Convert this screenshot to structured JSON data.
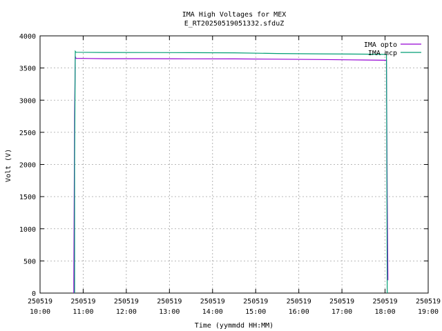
{
  "chart_data": {
    "type": "line",
    "title": "IMA High Voltages for MEX",
    "subtitle": "E_RT20250519051332.sfduZ",
    "xlabel": "Time (yymmdd HH:MM)",
    "ylabel": "Volt (V)",
    "xlim": [
      "2025-05-19 10:00",
      "2025-05-19 19:00"
    ],
    "ylim": [
      0,
      4000
    ],
    "grid": true,
    "legend_position": "top-right",
    "x_ticks": [
      {
        "date": "250519",
        "time": "10:00"
      },
      {
        "date": "250519",
        "time": "11:00"
      },
      {
        "date": "250519",
        "time": "12:00"
      },
      {
        "date": "250519",
        "time": "13:00"
      },
      {
        "date": "250519",
        "time": "14:00"
      },
      {
        "date": "250519",
        "time": "15:00"
      },
      {
        "date": "250519",
        "time": "16:00"
      },
      {
        "date": "250519",
        "time": "17:00"
      },
      {
        "date": "250519",
        "time": "18:00"
      },
      {
        "date": "250519",
        "time": "19:00"
      }
    ],
    "y_ticks": [
      0,
      500,
      1000,
      1500,
      2000,
      2500,
      3000,
      3500,
      4000
    ],
    "series": [
      {
        "name": "IMA opto",
        "color": "#9400d3",
        "points": [
          [
            "2025-05-19 10:47",
            0
          ],
          [
            "2025-05-19 10:47",
            190
          ],
          [
            "2025-05-19 10:48",
            2800
          ],
          [
            "2025-05-19 10:49",
            3680
          ],
          [
            "2025-05-19 10:50",
            3650
          ],
          [
            "2025-05-19 11:30",
            3645
          ],
          [
            "2025-05-19 12:30",
            3645
          ],
          [
            "2025-05-19 13:30",
            3643
          ],
          [
            "2025-05-19 14:30",
            3642
          ],
          [
            "2025-05-19 15:30",
            3638
          ],
          [
            "2025-05-19 16:30",
            3632
          ],
          [
            "2025-05-19 17:30",
            3625
          ],
          [
            "2025-05-19 18:02",
            3620
          ],
          [
            "2025-05-19 18:03",
            1500
          ],
          [
            "2025-05-19 18:04",
            200
          ]
        ]
      },
      {
        "name": "IMA mcp",
        "color": "#009e73",
        "points": [
          [
            "2025-05-19 10:48",
            0
          ],
          [
            "2025-05-19 10:48",
            2000
          ],
          [
            "2025-05-19 10:49",
            3760
          ],
          [
            "2025-05-19 10:50",
            3745
          ],
          [
            "2025-05-19 11:30",
            3742
          ],
          [
            "2025-05-19 12:30",
            3740
          ],
          [
            "2025-05-19 13:30",
            3738
          ],
          [
            "2025-05-19 14:30",
            3736
          ],
          [
            "2025-05-19 15:30",
            3725
          ],
          [
            "2025-05-19 16:30",
            3720
          ],
          [
            "2025-05-19 17:30",
            3716
          ],
          [
            "2025-05-19 18:02",
            3712
          ],
          [
            "2025-05-19 18:03",
            0
          ]
        ]
      }
    ]
  }
}
